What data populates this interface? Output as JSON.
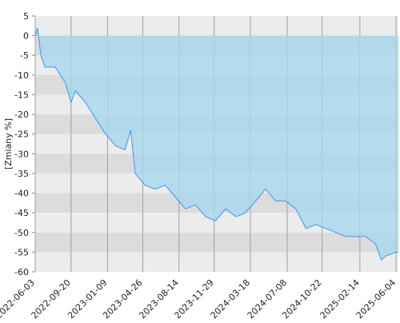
{
  "chart_data": {
    "type": "area",
    "ylabel": "[Zmiany %]",
    "x": [
      "2022-06-03",
      "2022-06-10",
      "2022-06-20",
      "2022-07-03",
      "2022-08-03",
      "2022-09-03",
      "2022-09-20",
      "2022-10-03",
      "2022-11-03",
      "2022-12-03",
      "2023-01-03",
      "2023-02-03",
      "2023-03-03",
      "2023-03-20",
      "2023-04-03",
      "2023-05-03",
      "2023-06-03",
      "2023-07-03",
      "2023-08-03",
      "2023-09-03",
      "2023-10-03",
      "2023-11-03",
      "2023-12-03",
      "2024-01-03",
      "2024-02-03",
      "2024-03-03",
      "2024-04-03",
      "2024-05-03",
      "2024-06-03",
      "2024-07-03",
      "2024-08-03",
      "2024-09-03",
      "2024-10-03",
      "2024-11-03",
      "2024-12-03",
      "2025-01-03",
      "2025-02-03",
      "2025-03-03",
      "2025-04-03",
      "2025-04-20",
      "2025-05-03",
      "2025-06-03",
      "2025-06-11"
    ],
    "values": [
      0,
      2,
      -5,
      -8,
      -8,
      -12,
      -17,
      -14,
      -17,
      -21,
      -25,
      -28,
      -29,
      -24,
      -35,
      -38,
      -39,
      -38,
      -41,
      -44,
      -43,
      -46,
      -47,
      -44,
      -46,
      -45,
      -42,
      -39,
      -42,
      -42,
      -44,
      -49,
      -48,
      -49,
      -50,
      -51,
      -51,
      -51,
      -53,
      -57,
      -56,
      -55,
      -55
    ],
    "color": "#3399ff",
    "fill": "#a6d8ee",
    "xlim": [
      "2022-06-03",
      "2025-06-11"
    ],
    "xticks": [
      "2022-06-03",
      "2022-09-20",
      "2023-01-09",
      "2023-04-26",
      "2023-08-14",
      "2023-11-29",
      "2024-03-18",
      "2024-07-08",
      "2024-10-22",
      "2025-02-14",
      "2025-06-04"
    ],
    "ylim": [
      -60,
      5
    ],
    "yticks": [
      5,
      0,
      -5,
      -10,
      -15,
      -20,
      -25,
      -30,
      -35,
      -40,
      -45,
      -50,
      -55,
      -60
    ],
    "grid": true
  }
}
